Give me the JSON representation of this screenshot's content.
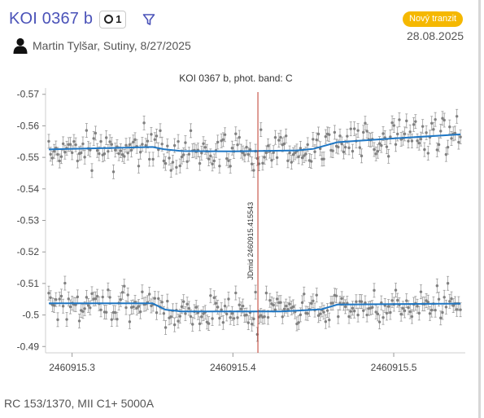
{
  "header": {
    "title": "KOI 0367 b",
    "count": "1",
    "badge": "Nový tranzit",
    "date": "28.08.2025",
    "author": "Martin Tylšar, Sutiny, 8/27/2025"
  },
  "footer": {
    "equipment": "RC 153/1370, MII C1+ 5000A"
  },
  "colors": {
    "accent": "#4a52b8",
    "badge": "#f5b800",
    "model": "#1f77c4",
    "midline": "#c0392b",
    "points": "#808080"
  },
  "icons": {
    "filter": "filter-icon",
    "user": "user-icon"
  },
  "chart_data": {
    "type": "scatter",
    "title": "KOI 0367 b, phot. band: C",
    "y_inverted": true,
    "ylim": [
      -0.488,
      -0.572
    ],
    "y_ticks": [
      -0.57,
      -0.56,
      -0.55,
      -0.54,
      -0.53,
      -0.52,
      -0.51,
      -0.5,
      -0.49
    ],
    "y_tick_labels": [
      "-0.57",
      "-0.56",
      "-0.55",
      "-0.54",
      "-0.53",
      "-0.52",
      "-0.51",
      "-0.5",
      "-0.49"
    ],
    "xlim": [
      2460915.2835,
      2460915.5445
    ],
    "x_ticks": [
      2460915.3,
      2460915.4,
      2460915.5
    ],
    "x_tick_labels": [
      "2460915.3",
      "2460915.4",
      "2460915.5"
    ],
    "midtransit": {
      "x": 2460915.415543,
      "label": "JDmid 2460915.415543"
    },
    "grid": false,
    "series": [
      {
        "model": [
          [
            2460915.2855,
            -0.5525
          ],
          [
            2460915.35,
            -0.5533
          ],
          [
            2460915.357,
            -0.5526
          ],
          [
            2460915.368,
            -0.552
          ],
          [
            2460915.4,
            -0.5519
          ],
          [
            2460915.44,
            -0.5522
          ],
          [
            2460915.45,
            -0.5527
          ],
          [
            2460915.465,
            -0.5548
          ],
          [
            2460915.5,
            -0.556
          ],
          [
            2460915.5415,
            -0.5573
          ]
        ],
        "errorbar": 0.0022
      },
      {
        "model": [
          [
            2460915.2855,
            -0.5037
          ],
          [
            2460915.35,
            -0.5037
          ],
          [
            2460915.358,
            -0.5017
          ],
          [
            2460915.368,
            -0.5011
          ],
          [
            2460915.43,
            -0.5011
          ],
          [
            2460915.455,
            -0.5018
          ],
          [
            2460915.465,
            -0.5033
          ],
          [
            2460915.5415,
            -0.5036
          ]
        ],
        "errorbar": 0.0022
      }
    ]
  }
}
